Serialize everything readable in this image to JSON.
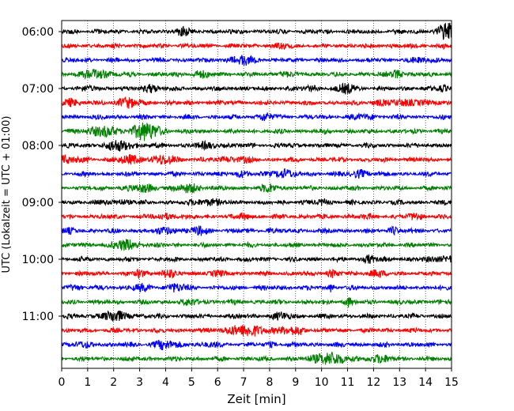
{
  "chart_data": {
    "type": "line",
    "title": "",
    "xlabel": "Zeit  [min]",
    "ylabel": "UTC (Lokalzeit = UTC + 01:00)",
    "xlim": [
      0,
      15
    ],
    "x_ticks": [
      "0",
      "1",
      "2",
      "3",
      "4",
      "5",
      "6",
      "7",
      "8",
      "9",
      "10",
      "11",
      "12",
      "13",
      "14",
      "15"
    ],
    "y_tick_labels": [
      "06:00",
      "07:00",
      "08:00",
      "09:00",
      "10:00",
      "11:00"
    ],
    "grid": "vertical-dotted",
    "trace_colors": [
      "#000000",
      "#ff0000",
      "#0000ff",
      "#008000"
    ],
    "traces": [
      {
        "start": "06:00",
        "color": "#000000"
      },
      {
        "start": "06:15",
        "color": "#ff0000"
      },
      {
        "start": "06:30",
        "color": "#0000ff"
      },
      {
        "start": "06:45",
        "color": "#008000"
      },
      {
        "start": "07:00",
        "color": "#000000"
      },
      {
        "start": "07:15",
        "color": "#ff0000"
      },
      {
        "start": "07:30",
        "color": "#0000ff"
      },
      {
        "start": "07:45",
        "color": "#008000"
      },
      {
        "start": "08:00",
        "color": "#000000"
      },
      {
        "start": "08:15",
        "color": "#ff0000"
      },
      {
        "start": "08:30",
        "color": "#0000ff"
      },
      {
        "start": "08:45",
        "color": "#008000"
      },
      {
        "start": "09:00",
        "color": "#000000"
      },
      {
        "start": "09:15",
        "color": "#ff0000"
      },
      {
        "start": "09:30",
        "color": "#0000ff"
      },
      {
        "start": "09:45",
        "color": "#008000"
      },
      {
        "start": "10:00",
        "color": "#000000"
      },
      {
        "start": "10:15",
        "color": "#ff0000"
      },
      {
        "start": "10:30",
        "color": "#0000ff"
      },
      {
        "start": "10:45",
        "color": "#008000"
      },
      {
        "start": "11:00",
        "color": "#000000"
      },
      {
        "start": "11:15",
        "color": "#ff0000"
      },
      {
        "start": "11:30",
        "color": "#0000ff"
      },
      {
        "start": "11:45",
        "color": "#008000"
      }
    ]
  }
}
